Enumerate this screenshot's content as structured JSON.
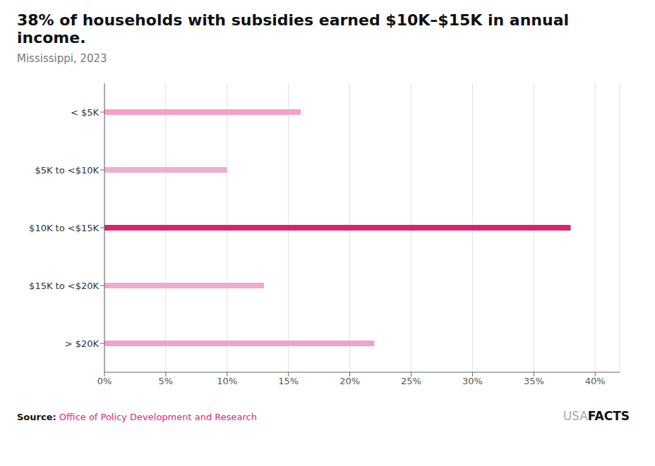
{
  "chart_data": {
    "type": "bar",
    "orientation": "horizontal",
    "title": "38% of households with subsidies earned $10K–$15K in annual income.",
    "subtitle": "Mississippi, 2023",
    "categories": [
      "< $5K",
      "$5K to <$10K",
      "$10K to <$15K",
      "$15K to <$20K",
      "> $20K"
    ],
    "values": [
      16,
      10,
      38,
      13,
      22
    ],
    "colors": [
      "#f4a0c8",
      "#f0acd0",
      "#d6246e",
      "#f0acd0",
      "#f4a0c8"
    ],
    "xlim": [
      0,
      42
    ],
    "xticks": [
      {
        "value": 0,
        "label": "0%"
      },
      {
        "value": 5,
        "label": "5%"
      },
      {
        "value": 10,
        "label": "10%"
      },
      {
        "value": 15,
        "label": "15%"
      },
      {
        "value": 20,
        "label": "20%"
      },
      {
        "value": 25,
        "label": "25%"
      },
      {
        "value": 30,
        "label": "30%"
      },
      {
        "value": 35,
        "label": "35%"
      },
      {
        "value": 40,
        "label": "40%"
      }
    ],
    "grid": true,
    "annotations": [
      "Source:",
      "Office of Policy Development and Research",
      "USA",
      "FACTS"
    ]
  }
}
